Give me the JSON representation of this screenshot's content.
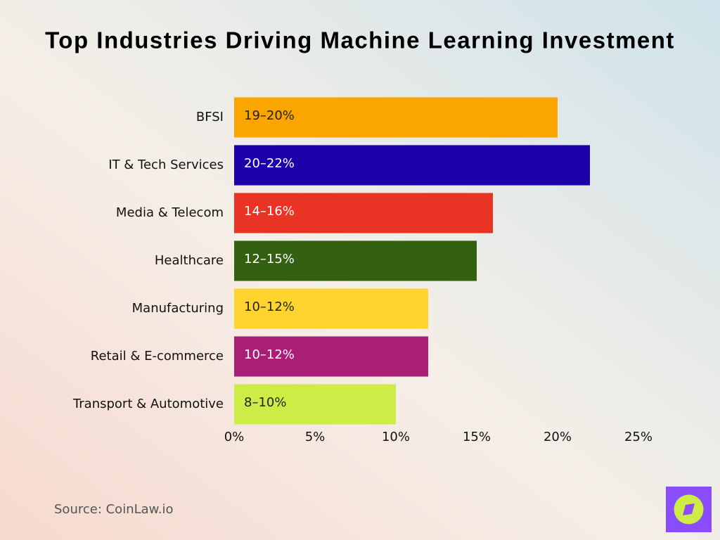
{
  "chart_data": {
    "type": "bar",
    "orientation": "horizontal",
    "title": "Top Industries Driving Machine Learning Investment",
    "categories": [
      "BFSI",
      "IT & Tech Services",
      "Media & Telecom",
      "Healthcare",
      "Manufacturing",
      "Retail & E-commerce",
      "Transport & Automotive"
    ],
    "values": [
      20,
      22,
      16,
      15,
      12,
      12,
      10
    ],
    "value_labels": [
      "19–20%",
      "20–22%",
      "14–16%",
      "12–15%",
      "10–12%",
      "10–12%",
      "8–10%"
    ],
    "colors": [
      "#fba500",
      "#1c00aa",
      "#e93324",
      "#346012",
      "#ffd42e",
      "#ab1e78",
      "#cdec46"
    ],
    "xlim": [
      0,
      25
    ],
    "xticks": [
      {
        "value": 0,
        "label": "0%"
      },
      {
        "value": 5,
        "label": "5%"
      },
      {
        "value": 10,
        "label": "10%"
      },
      {
        "value": 15,
        "label": "15%"
      },
      {
        "value": 20,
        "label": "20%"
      },
      {
        "value": 25,
        "label": "25%"
      }
    ],
    "grid": false,
    "source": "Source: CoinLaw.io"
  }
}
